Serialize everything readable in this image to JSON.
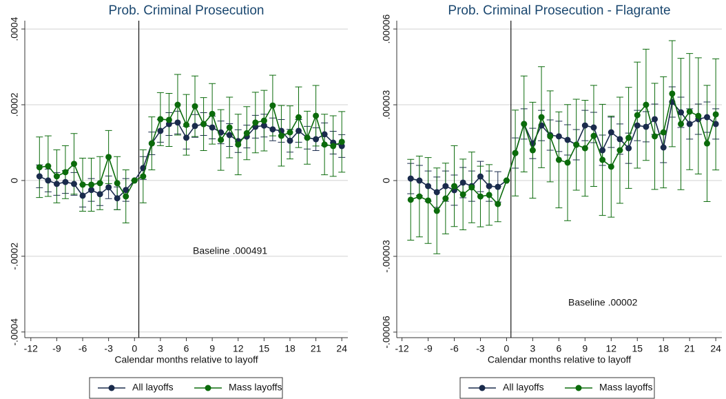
{
  "chart_data": [
    {
      "type": "line",
      "title": "Prob. Criminal Prosecution",
      "x_label": "Calendar months relative to layoff",
      "annotation": "Baseline .000491",
      "x": [
        -11,
        -10,
        -9,
        -8,
        -7,
        -6,
        -5,
        -4,
        -3,
        -2,
        -1,
        0,
        1,
        2,
        3,
        4,
        5,
        6,
        7,
        8,
        9,
        10,
        11,
        12,
        13,
        14,
        15,
        16,
        17,
        18,
        19,
        20,
        21,
        22,
        23,
        24
      ],
      "xlim": [
        -12.7,
        24.7
      ],
      "xticks": [
        -12,
        -9,
        -6,
        -3,
        0,
        3,
        6,
        9,
        12,
        15,
        18,
        21,
        24
      ],
      "ylim": [
        -0.000415,
        0.000422
      ],
      "yticks": [
        {
          "value": -0.0004,
          "label": "-.0004"
        },
        {
          "value": -0.0002,
          "label": "-.0002"
        },
        0,
        {
          "value": 0.0002,
          "label": ".0002"
        },
        {
          "value": 0.0004,
          "label": ".0004"
        }
      ],
      "grid": true,
      "vline": 0.5,
      "series": [
        {
          "name": "All layoffs",
          "color": "#1a2b4c",
          "values": [
            1.1e-05,
            0,
            -9e-06,
            -4e-06,
            -9e-06,
            -4e-05,
            -2.5e-05,
            -3.6e-05,
            -1.8e-05,
            -4.7e-05,
            -2.5e-05,
            0,
            3.3e-05,
            9.8e-05,
            0.000131,
            0.000149,
            0.000153,
            0.000113,
            0.000144,
            0.000149,
            0.00014,
            0.000127,
            0.00012,
            0.000104,
            0.000116,
            0.000142,
            0.000145,
            0.000135,
            0.000131,
            0.000105,
            0.000131,
            0.000113,
            0.000109,
            0.000122,
            0.0001,
            9.1e-05
          ],
          "errors": [
            3e-05,
            3e-05,
            3e-05,
            3e-05,
            3e-05,
            3e-05,
            3e-05,
            3e-05,
            3e-05,
            3e-05,
            3e-05,
            0,
            3e-05,
            3e-05,
            3e-05,
            3e-05,
            3e-05,
            3e-05,
            3e-05,
            3e-05,
            3e-05,
            3e-05,
            3e-05,
            3e-05,
            3e-05,
            3e-05,
            3e-05,
            3e-05,
            3e-05,
            3e-05,
            3e-05,
            3e-05,
            3e-05,
            3e-05,
            3e-05,
            3e-05
          ]
        },
        {
          "name": "Mass layoffs",
          "color": "#0b6b0b",
          "values": [
            3.5e-05,
            3.8e-05,
            1.1e-05,
            2.2e-05,
            4.4e-05,
            -1.1e-05,
            -1.1e-05,
            -7e-06,
            6.2e-05,
            -7e-06,
            -4.2e-05,
            0,
            1.1e-05,
            9.8e-05,
            0.000162,
            0.00016,
            0.0002,
            0.000147,
            0.000196,
            0.000149,
            0.000176,
            0.000107,
            0.00014,
            9.5e-05,
            0.000125,
            0.000153,
            0.000158,
            0.000198,
            0.000118,
            0.000127,
            0.000167,
            0.000113,
            0.000171,
            9.5e-05,
            9.1e-05,
            0.000102
          ],
          "errors": [
            8e-05,
            8e-05,
            7e-05,
            7e-05,
            8e-05,
            7e-05,
            7e-05,
            7e-05,
            7e-05,
            7e-05,
            7e-05,
            0,
            7e-05,
            7e-05,
            7e-05,
            7e-05,
            8e-05,
            8e-05,
            8e-05,
            7e-05,
            8e-05,
            8e-05,
            8e-05,
            8e-05,
            7e-05,
            8e-05,
            8e-05,
            8e-05,
            8e-05,
            7e-05,
            8e-05,
            7e-05,
            8e-05,
            8e-05,
            8e-05,
            8e-05
          ]
        }
      ]
    },
    {
      "type": "line",
      "title": "Prob. Criminal Prosecution - Flagrante",
      "x_label": "Calendar months relative to layoff",
      "annotation": "Baseline .00002",
      "x": [
        -11,
        -10,
        -9,
        -8,
        -7,
        -6,
        -5,
        -4,
        -3,
        -2,
        -1,
        0,
        1,
        2,
        3,
        4,
        5,
        6,
        7,
        8,
        9,
        10,
        11,
        12,
        13,
        14,
        15,
        16,
        17,
        18,
        19,
        20,
        21,
        22,
        23,
        24
      ],
      "xlim": [
        -12.6,
        24.7
      ],
      "xticks": [
        -12,
        -9,
        -6,
        -3,
        0,
        3,
        6,
        9,
        12,
        15,
        18,
        21,
        24
      ],
      "ylim": [
        -6.22e-05,
        6.33e-05
      ],
      "yticks": [
        {
          "value": -6e-05,
          "label": "-.00006"
        },
        {
          "value": -3e-05,
          "label": "-.00003"
        },
        0,
        {
          "value": 3e-05,
          "label": ".00003"
        },
        {
          "value": 6e-05,
          "label": ".00006"
        }
      ],
      "grid": true,
      "vline": 0.5,
      "series": [
        {
          "name": "All layoffs",
          "color": "#1a2b4c",
          "values": [
            8e-07,
            0,
            -2.2e-06,
            -4.6e-06,
            -2.2e-06,
            -3.8e-06,
            -8e-07,
            -2.2e-06,
            1.6e-06,
            -2.2e-06,
            -2.5e-06,
            0,
            1.09e-05,
            2.24e-05,
            1.47e-05,
            2.18e-05,
            1.8e-05,
            1.75e-05,
            1.61e-05,
            1.42e-05,
            2.18e-05,
            2.1e-05,
            1.2e-05,
            1.91e-05,
            1.64e-05,
            1.28e-05,
            2.18e-05,
            2.13e-05,
            2.43e-05,
            1.31e-05,
            3.11e-05,
            2.7e-05,
            2.24e-05,
            2.43e-05,
            2.51e-05,
            2.24e-05
          ],
          "errors": [
            6e-06,
            6e-06,
            6e-06,
            6e-06,
            6e-06,
            6e-06,
            6e-06,
            6e-06,
            6e-06,
            6e-06,
            6e-06,
            0,
            6e-06,
            6e-06,
            6e-06,
            6e-06,
            6e-06,
            6e-06,
            6e-06,
            6e-06,
            6e-06,
            6e-06,
            6e-06,
            6e-06,
            6e-06,
            6e-06,
            6e-06,
            6e-06,
            6e-06,
            6e-06,
            6e-06,
            6e-06,
            6e-06,
            6e-06,
            6e-06,
            6e-06
          ]
        },
        {
          "name": "Mass layoffs",
          "color": "#0b6b0b",
          "values": [
            -7.6e-06,
            -6.3e-06,
            -7.9e-06,
            -1.2e-05,
            -7.1e-06,
            -2.2e-06,
            -5.5e-06,
            -2.7e-06,
            -6.3e-06,
            -5.7e-06,
            -9.3e-06,
            0,
            1.09e-05,
            2.24e-05,
            1.2e-05,
            2.51e-05,
            1.75e-05,
            8.2e-06,
            7.1e-06,
            1.42e-05,
            1.28e-05,
            1.77e-05,
            8.2e-06,
            5.5e-06,
            1.2e-05,
            1.69e-05,
            2.59e-05,
            3e-05,
            1.75e-05,
            1.91e-05,
            3.44e-05,
            2.24e-05,
            2.73e-05,
            2.56e-05,
            1.47e-05,
            2.62e-05
          ],
          "errors": [
            1.6e-05,
            1.6e-05,
            1.7e-05,
            1.7e-05,
            1.4e-05,
            1.6e-05,
            1.4e-05,
            1.4e-05,
            1.2e-05,
            1.2e-05,
            7e-06,
            0,
            1.7e-05,
            1.9e-05,
            1.9e-05,
            2e-05,
            1.8e-05,
            1.9e-05,
            2.3e-05,
            1.8e-05,
            1.9e-05,
            2e-05,
            2.2e-05,
            2e-05,
            2.1e-05,
            2e-05,
            2.1e-05,
            2.2e-05,
            2.1e-05,
            2.2e-05,
            2.1e-05,
            2.6e-05,
            2.3e-05,
            2.3e-05,
            2.3e-05,
            2.2e-05
          ]
        }
      ]
    }
  ]
}
